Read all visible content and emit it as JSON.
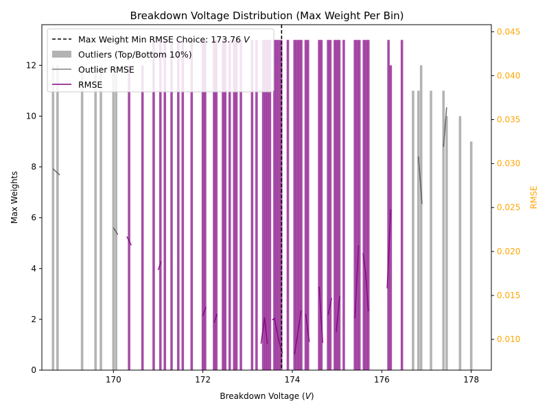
{
  "chart_data": {
    "type": "bar",
    "title": "Breakdown Voltage Distribution (Max Weight Per Bin)",
    "xlabel_main": "Breakdown Voltage (",
    "xlabel_unit": "V",
    "xlabel_end": ")",
    "ylabel": "Max Weights",
    "ylabel_right": "RMSE",
    "xlim": [
      168.4,
      178.45
    ],
    "ylim": [
      0,
      13.6
    ],
    "y2lim": [
      0.0065,
      0.0458
    ],
    "xticks": [
      170,
      172,
      174,
      176,
      178
    ],
    "yticks": [
      0,
      2,
      4,
      6,
      8,
      10,
      12
    ],
    "y2ticks": [
      0.01,
      0.015,
      0.02,
      0.025,
      0.03,
      0.035,
      0.04,
      0.045
    ],
    "colors": {
      "main": "#800080",
      "outlier": "#808080",
      "right_axis": "#FFA500",
      "vline": "#000000"
    },
    "vline_x": 173.76,
    "legend": {
      "placement": "upper-left",
      "entries": [
        {
          "label": "Max Weight Min RMSE Choice: 173.76 ",
          "unit": "V",
          "kind": "dashed"
        },
        {
          "label": "Outliers (Top/Bottom 10%)",
          "kind": "patch"
        },
        {
          "label": "Outlier RMSE",
          "kind": "line-gray"
        },
        {
          "label": "RMSE",
          "kind": "line-purple"
        }
      ]
    },
    "bar_width": 0.055,
    "main_bars": [
      {
        "x": 170.35,
        "y": 12
      },
      {
        "x": 170.65,
        "y": 12
      },
      {
        "x": 170.9,
        "y": 13
      },
      {
        "x": 171.05,
        "y": 13
      },
      {
        "x": 171.15,
        "y": 13
      },
      {
        "x": 171.3,
        "y": 13
      },
      {
        "x": 171.45,
        "y": 13
      },
      {
        "x": 171.55,
        "y": 13
      },
      {
        "x": 171.75,
        "y": 13
      },
      {
        "x": 172.0,
        "y": 13
      },
      {
        "x": 172.05,
        "y": 13
      },
      {
        "x": 172.25,
        "y": 13
      },
      {
        "x": 172.3,
        "y": 13
      },
      {
        "x": 172.45,
        "y": 13
      },
      {
        "x": 172.5,
        "y": 13
      },
      {
        "x": 172.6,
        "y": 13
      },
      {
        "x": 172.7,
        "y": 13
      },
      {
        "x": 172.75,
        "y": 13
      },
      {
        "x": 172.85,
        "y": 13
      },
      {
        "x": 173.1,
        "y": 13
      },
      {
        "x": 173.2,
        "y": 13
      },
      {
        "x": 173.35,
        "y": 13
      },
      {
        "x": 173.4,
        "y": 13
      },
      {
        "x": 173.45,
        "y": 13
      },
      {
        "x": 173.5,
        "y": 13
      },
      {
        "x": 173.6,
        "y": 13
      },
      {
        "x": 173.65,
        "y": 13
      },
      {
        "x": 173.7,
        "y": 13
      },
      {
        "x": 173.75,
        "y": 13
      },
      {
        "x": 173.9,
        "y": 13
      },
      {
        "x": 174.05,
        "y": 13
      },
      {
        "x": 174.1,
        "y": 13
      },
      {
        "x": 174.15,
        "y": 13
      },
      {
        "x": 174.2,
        "y": 13
      },
      {
        "x": 174.3,
        "y": 13
      },
      {
        "x": 174.35,
        "y": 13
      },
      {
        "x": 174.6,
        "y": 13
      },
      {
        "x": 174.65,
        "y": 13
      },
      {
        "x": 174.8,
        "y": 13
      },
      {
        "x": 174.85,
        "y": 13
      },
      {
        "x": 174.95,
        "y": 13
      },
      {
        "x": 175.0,
        "y": 13
      },
      {
        "x": 175.05,
        "y": 13
      },
      {
        "x": 175.15,
        "y": 13
      },
      {
        "x": 175.4,
        "y": 13
      },
      {
        "x": 175.45,
        "y": 13
      },
      {
        "x": 175.5,
        "y": 13
      },
      {
        "x": 175.6,
        "y": 13
      },
      {
        "x": 175.65,
        "y": 13
      },
      {
        "x": 175.7,
        "y": 13
      },
      {
        "x": 176.15,
        "y": 13
      },
      {
        "x": 176.2,
        "y": 12
      },
      {
        "x": 176.45,
        "y": 13
      }
    ],
    "outlier_bars": [
      {
        "x": 168.65,
        "y": 12
      },
      {
        "x": 168.75,
        "y": 12
      },
      {
        "x": 169.3,
        "y": 12
      },
      {
        "x": 169.6,
        "y": 12
      },
      {
        "x": 169.72,
        "y": 12
      },
      {
        "x": 170.0,
        "y": 12
      },
      {
        "x": 170.06,
        "y": 12
      },
      {
        "x": 176.7,
        "y": 11
      },
      {
        "x": 176.82,
        "y": 11
      },
      {
        "x": 176.88,
        "y": 12
      },
      {
        "x": 177.1,
        "y": 11
      },
      {
        "x": 177.38,
        "y": 11
      },
      {
        "x": 177.45,
        "y": 10
      },
      {
        "x": 177.75,
        "y": 10
      },
      {
        "x": 178.0,
        "y": 9
      }
    ],
    "rmse_segments": [
      [
        [
          170.3,
          0.0217
        ],
        [
          170.4,
          0.0207
        ]
      ],
      [
        [
          171.0,
          0.0179
        ],
        [
          171.07,
          0.0189
        ]
      ],
      [
        [
          172.0,
          0.0127
        ],
        [
          172.07,
          0.0137
        ]
      ],
      [
        [
          172.25,
          0.0119
        ],
        [
          172.32,
          0.0129
        ]
      ],
      [
        [
          173.3,
          0.0095
        ],
        [
          173.38,
          0.0125
        ],
        [
          173.44,
          0.0095
        ]
      ],
      [
        [
          173.55,
          0.0122
        ],
        [
          173.6,
          0.0124
        ],
        [
          173.7,
          0.0098
        ],
        [
          173.78,
          0.0084
        ]
      ],
      [
        [
          174.05,
          0.0083
        ],
        [
          174.2,
          0.0133
        ]
      ],
      [
        [
          174.3,
          0.0129
        ],
        [
          174.38,
          0.0097
        ]
      ],
      [
        [
          174.6,
          0.016
        ],
        [
          174.68,
          0.0096
        ]
      ],
      [
        [
          174.8,
          0.0128
        ],
        [
          174.88,
          0.0147
        ]
      ],
      [
        [
          174.98,
          0.0108
        ],
        [
          175.06,
          0.0149
        ]
      ],
      [
        [
          175.4,
          0.0124
        ],
        [
          175.48,
          0.0207
        ]
      ],
      [
        [
          175.58,
          0.0198
        ],
        [
          175.64,
          0.0175
        ],
        [
          175.7,
          0.0132
        ]
      ],
      [
        [
          176.12,
          0.0158
        ],
        [
          176.2,
          0.0248
        ]
      ]
    ],
    "outlier_rmse_segments": [
      [
        [
          168.65,
          0.0294
        ],
        [
          168.8,
          0.0287
        ]
      ],
      [
        [
          170.0,
          0.0227
        ],
        [
          170.1,
          0.0219
        ]
      ],
      [
        [
          176.82,
          0.0308
        ],
        [
          176.9,
          0.0254
        ]
      ],
      [
        [
          177.38,
          0.0319
        ],
        [
          177.45,
          0.0364
        ]
      ]
    ]
  }
}
